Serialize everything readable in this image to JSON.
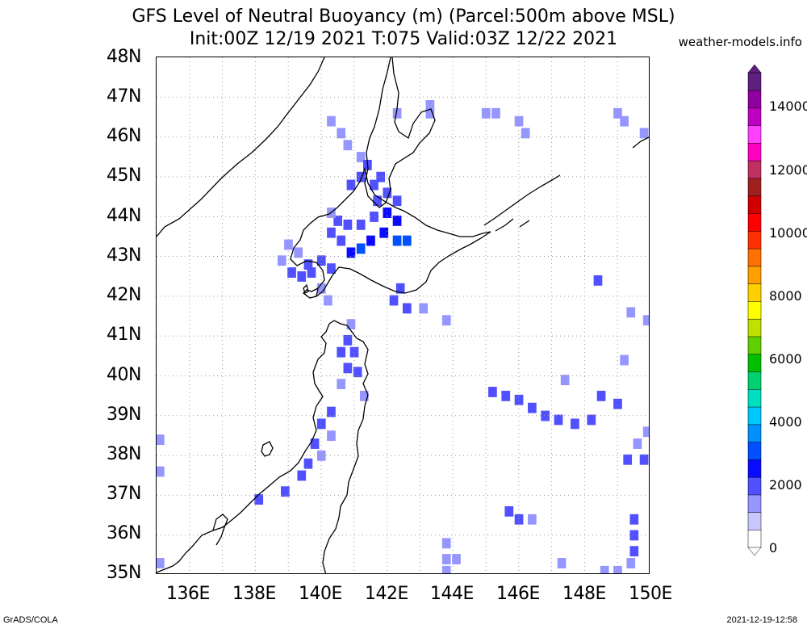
{
  "title": {
    "line1": "GFS Level of Neutral Buoyancy (m) (Parcel:500m above MSL)",
    "line2": "Init:00Z 12/19 2021 T:075 Valid:03Z 12/22 2021"
  },
  "site": "weather-models.info",
  "footer": {
    "left": "GrADS/COLA",
    "right": "2021-12-19-12:58"
  },
  "map": {
    "lon_range": [
      135,
      150
    ],
    "lat_range": [
      35,
      48
    ],
    "lat_labels": [
      "48N",
      "47N",
      "46N",
      "45N",
      "44N",
      "43N",
      "42N",
      "41N",
      "40N",
      "39N",
      "38N",
      "37N",
      "36N",
      "35N"
    ],
    "lon_labels": [
      "136E",
      "138E",
      "140E",
      "142E",
      "144E",
      "146E",
      "148E",
      "150E"
    ],
    "grid": "dotted gray",
    "field_cells": [
      {
        "lon": 142.3,
        "lat": 46.6,
        "v": 1400
      },
      {
        "lon": 143.3,
        "lat": 46.8,
        "v": 1400
      },
      {
        "lon": 143.3,
        "lat": 46.6,
        "v": 1400
      },
      {
        "lon": 145.0,
        "lat": 46.6,
        "v": 1400
      },
      {
        "lon": 145.3,
        "lat": 46.6,
        "v": 1400
      },
      {
        "lon": 146.0,
        "lat": 46.4,
        "v": 1400
      },
      {
        "lon": 146.2,
        "lat": 46.1,
        "v": 1400
      },
      {
        "lon": 149.0,
        "lat": 46.6,
        "v": 1400
      },
      {
        "lon": 149.2,
        "lat": 46.4,
        "v": 1400
      },
      {
        "lon": 149.8,
        "lat": 46.1,
        "v": 1400
      },
      {
        "lon": 140.3,
        "lat": 46.4,
        "v": 1400
      },
      {
        "lon": 140.6,
        "lat": 46.1,
        "v": 1400
      },
      {
        "lon": 140.8,
        "lat": 45.8,
        "v": 1400
      },
      {
        "lon": 141.2,
        "lat": 45.5,
        "v": 1600
      },
      {
        "lon": 141.4,
        "lat": 45.3,
        "v": 1800
      },
      {
        "lon": 141.8,
        "lat": 45.0,
        "v": 2000
      },
      {
        "lon": 141.2,
        "lat": 45.0,
        "v": 1800
      },
      {
        "lon": 140.9,
        "lat": 44.8,
        "v": 1800
      },
      {
        "lon": 141.6,
        "lat": 44.8,
        "v": 2000
      },
      {
        "lon": 142.0,
        "lat": 44.6,
        "v": 2200
      },
      {
        "lon": 142.3,
        "lat": 44.4,
        "v": 2200
      },
      {
        "lon": 141.7,
        "lat": 44.4,
        "v": 2000
      },
      {
        "lon": 141.6,
        "lat": 44.0,
        "v": 2000
      },
      {
        "lon": 142.0,
        "lat": 44.1,
        "v": 2400
      },
      {
        "lon": 142.3,
        "lat": 43.9,
        "v": 2400
      },
      {
        "lon": 142.6,
        "lat": 43.4,
        "v": 2800
      },
      {
        "lon": 142.3,
        "lat": 43.4,
        "v": 2800
      },
      {
        "lon": 141.9,
        "lat": 43.6,
        "v": 2600
      },
      {
        "lon": 141.5,
        "lat": 43.4,
        "v": 2400
      },
      {
        "lon": 141.2,
        "lat": 43.2,
        "v": 2800
      },
      {
        "lon": 140.9,
        "lat": 43.1,
        "v": 2600
      },
      {
        "lon": 140.6,
        "lat": 43.4,
        "v": 2000
      },
      {
        "lon": 140.3,
        "lat": 43.6,
        "v": 1800
      },
      {
        "lon": 140.5,
        "lat": 43.9,
        "v": 1800
      },
      {
        "lon": 140.3,
        "lat": 44.1,
        "v": 1600
      },
      {
        "lon": 140.8,
        "lat": 43.8,
        "v": 1800
      },
      {
        "lon": 141.2,
        "lat": 43.8,
        "v": 2000
      },
      {
        "lon": 140.3,
        "lat": 42.7,
        "v": 1800
      },
      {
        "lon": 140.0,
        "lat": 42.9,
        "v": 1800
      },
      {
        "lon": 139.6,
        "lat": 42.8,
        "v": 1800
      },
      {
        "lon": 139.3,
        "lat": 43.1,
        "v": 1600
      },
      {
        "lon": 139.0,
        "lat": 43.3,
        "v": 1600
      },
      {
        "lon": 138.8,
        "lat": 42.9,
        "v": 1600
      },
      {
        "lon": 139.1,
        "lat": 42.6,
        "v": 1800
      },
      {
        "lon": 139.4,
        "lat": 42.5,
        "v": 1800
      },
      {
        "lon": 139.7,
        "lat": 42.6,
        "v": 1800
      },
      {
        "lon": 140.0,
        "lat": 42.2,
        "v": 1600
      },
      {
        "lon": 140.2,
        "lat": 41.9,
        "v": 1400
      },
      {
        "lon": 142.4,
        "lat": 42.2,
        "v": 1800
      },
      {
        "lon": 142.2,
        "lat": 41.9,
        "v": 1800
      },
      {
        "lon": 142.6,
        "lat": 41.7,
        "v": 1800
      },
      {
        "lon": 143.1,
        "lat": 41.7,
        "v": 1600
      },
      {
        "lon": 143.8,
        "lat": 41.4,
        "v": 1600
      },
      {
        "lon": 140.9,
        "lat": 41.3,
        "v": 1600
      },
      {
        "lon": 140.8,
        "lat": 40.9,
        "v": 1800
      },
      {
        "lon": 140.6,
        "lat": 40.6,
        "v": 1800
      },
      {
        "lon": 141.0,
        "lat": 40.6,
        "v": 2000
      },
      {
        "lon": 140.8,
        "lat": 40.2,
        "v": 1800
      },
      {
        "lon": 141.1,
        "lat": 40.1,
        "v": 1800
      },
      {
        "lon": 140.6,
        "lat": 39.8,
        "v": 1600
      },
      {
        "lon": 141.3,
        "lat": 39.5,
        "v": 1600
      },
      {
        "lon": 140.3,
        "lat": 39.1,
        "v": 1800
      },
      {
        "lon": 140.0,
        "lat": 38.8,
        "v": 1800
      },
      {
        "lon": 140.3,
        "lat": 38.5,
        "v": 1600
      },
      {
        "lon": 139.8,
        "lat": 38.3,
        "v": 1800
      },
      {
        "lon": 140.0,
        "lat": 38.0,
        "v": 1600
      },
      {
        "lon": 139.6,
        "lat": 37.8,
        "v": 2200
      },
      {
        "lon": 139.4,
        "lat": 37.5,
        "v": 2200
      },
      {
        "lon": 138.9,
        "lat": 37.1,
        "v": 1800
      },
      {
        "lon": 138.1,
        "lat": 36.9,
        "v": 2000
      },
      {
        "lon": 135.1,
        "lat": 38.4,
        "v": 1400
      },
      {
        "lon": 135.1,
        "lat": 37.6,
        "v": 1400
      },
      {
        "lon": 135.1,
        "lat": 35.3,
        "v": 1400
      },
      {
        "lon": 145.2,
        "lat": 39.6,
        "v": 1800
      },
      {
        "lon": 145.6,
        "lat": 39.5,
        "v": 1800
      },
      {
        "lon": 146.0,
        "lat": 39.4,
        "v": 1800
      },
      {
        "lon": 146.4,
        "lat": 39.2,
        "v": 1800
      },
      {
        "lon": 146.8,
        "lat": 39.0,
        "v": 2000
      },
      {
        "lon": 147.2,
        "lat": 38.9,
        "v": 2200
      },
      {
        "lon": 147.7,
        "lat": 38.8,
        "v": 2200
      },
      {
        "lon": 148.2,
        "lat": 38.9,
        "v": 1800
      },
      {
        "lon": 148.5,
        "lat": 39.5,
        "v": 1800
      },
      {
        "lon": 149.0,
        "lat": 39.3,
        "v": 1800
      },
      {
        "lon": 147.4,
        "lat": 39.9,
        "v": 1600
      },
      {
        "lon": 149.9,
        "lat": 38.6,
        "v": 1400
      },
      {
        "lon": 149.6,
        "lat": 38.3,
        "v": 1400
      },
      {
        "lon": 149.3,
        "lat": 37.9,
        "v": 1800
      },
      {
        "lon": 149.8,
        "lat": 37.9,
        "v": 1800
      },
      {
        "lon": 148.4,
        "lat": 42.4,
        "v": 1800
      },
      {
        "lon": 149.4,
        "lat": 41.6,
        "v": 1400
      },
      {
        "lon": 149.9,
        "lat": 41.4,
        "v": 1400
      },
      {
        "lon": 149.2,
        "lat": 40.4,
        "v": 1400
      },
      {
        "lon": 145.7,
        "lat": 36.6,
        "v": 1800
      },
      {
        "lon": 146.0,
        "lat": 36.4,
        "v": 1800
      },
      {
        "lon": 146.4,
        "lat": 36.4,
        "v": 1400
      },
      {
        "lon": 149.5,
        "lat": 36.4,
        "v": 1800
      },
      {
        "lon": 149.5,
        "lat": 36.0,
        "v": 1800
      },
      {
        "lon": 149.5,
        "lat": 35.6,
        "v": 1800
      },
      {
        "lon": 143.8,
        "lat": 35.8,
        "v": 1400
      },
      {
        "lon": 143.8,
        "lat": 35.4,
        "v": 1400
      },
      {
        "lon": 144.1,
        "lat": 35.4,
        "v": 1400
      },
      {
        "lon": 143.8,
        "lat": 35.1,
        "v": 1400
      },
      {
        "lon": 147.3,
        "lat": 35.3,
        "v": 1400
      },
      {
        "lon": 148.6,
        "lat": 35.1,
        "v": 1400
      },
      {
        "lon": 149.0,
        "lat": 35.1,
        "v": 1400
      },
      {
        "lon": 149.4,
        "lat": 35.3,
        "v": 1400
      }
    ]
  },
  "colorbar": {
    "labels": [
      "14000",
      "12000",
      "10000",
      "8000",
      "6000",
      "4000",
      "2000",
      "0"
    ],
    "range": [
      0,
      15000
    ],
    "colors": [
      "#ffffff",
      "#c8c8ff",
      "#9696ff",
      "#5050ff",
      "#0a0aff",
      "#0050ff",
      "#0090ff",
      "#00c8ff",
      "#00e0c0",
      "#00d070",
      "#00c000",
      "#60d000",
      "#c0e000",
      "#ffff00",
      "#ffd000",
      "#ffa000",
      "#ff7000",
      "#ff3000",
      "#ff0000",
      "#d00000",
      "#a02020",
      "#c03060",
      "#ff00c0",
      "#ff40ff",
      "#c000c0",
      "#9000a0",
      "#602080"
    ]
  }
}
